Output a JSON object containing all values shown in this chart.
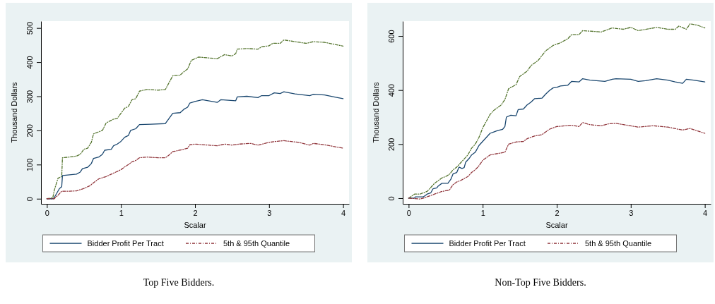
{
  "chart_data": [
    {
      "type": "line",
      "title": "Top Five Bidders.",
      "xlabel": "Scalar",
      "ylabel": "Thousand Dollars",
      "xlim": [
        -0.08,
        4.08
      ],
      "ylim": [
        -15,
        520
      ],
      "xticks": [
        0,
        1,
        2,
        3,
        4
      ],
      "yticks": [
        0,
        100,
        200,
        300,
        400,
        500
      ],
      "legend": "bottom",
      "series": [
        {
          "name": "Bidder Profit Per Tract",
          "color": "#1a476f",
          "line_style": "solid",
          "x": [
            0,
            0.09,
            0.13,
            0.17,
            0.2,
            0.21,
            0.4,
            0.45,
            0.48,
            0.55,
            0.6,
            0.63,
            0.7,
            0.75,
            0.78,
            0.87,
            0.9,
            0.95,
            1.0,
            1.05,
            1.1,
            1.13,
            1.2,
            1.25,
            1.4,
            1.6,
            1.65,
            1.7,
            1.8,
            1.85,
            1.9,
            1.93,
            2.0,
            2.1,
            2.3,
            2.35,
            2.55,
            2.57,
            2.7,
            2.85,
            2.9,
            3.0,
            3.07,
            3.15,
            3.2,
            3.35,
            3.55,
            3.6,
            3.75,
            3.9,
            4.0
          ],
          "values": [
            0,
            0,
            15,
            30,
            35,
            68,
            72,
            78,
            88,
            92,
            103,
            118,
            122,
            130,
            142,
            145,
            155,
            160,
            168,
            180,
            185,
            200,
            205,
            217,
            218,
            220,
            235,
            250,
            252,
            262,
            268,
            280,
            285,
            290,
            282,
            290,
            287,
            298,
            300,
            296,
            302,
            302,
            310,
            308,
            313,
            307,
            302,
            306,
            304,
            297,
            293
          ]
        },
        {
          "name": "5th & 95th Quantile",
          "color": "#90353b",
          "line_style": "dashed",
          "x": [
            0,
            0.1,
            0.12,
            0.15,
            0.2,
            0.3,
            0.4,
            0.5,
            0.58,
            0.65,
            0.7,
            0.8,
            0.85,
            0.9,
            1.0,
            1.05,
            1.1,
            1.15,
            1.2,
            1.25,
            1.35,
            1.5,
            1.6,
            1.65,
            1.7,
            1.75,
            1.85,
            1.9,
            1.93,
            2.0,
            2.3,
            2.4,
            2.5,
            2.6,
            2.75,
            2.85,
            3.0,
            3.1,
            3.2,
            3.4,
            3.55,
            3.6,
            3.75,
            4.0
          ],
          "values": [
            0,
            0,
            5,
            10,
            22,
            22,
            23,
            30,
            38,
            50,
            58,
            65,
            70,
            75,
            85,
            93,
            100,
            108,
            112,
            120,
            122,
            120,
            120,
            128,
            138,
            140,
            145,
            148,
            158,
            160,
            155,
            160,
            157,
            160,
            162,
            157,
            165,
            168,
            170,
            165,
            157,
            162,
            158,
            148
          ]
        },
        {
          "color": "#55752f",
          "line_style": "dashed",
          "x": [
            0,
            0.08,
            0.1,
            0.15,
            0.2,
            0.21,
            0.3,
            0.4,
            0.45,
            0.5,
            0.55,
            0.6,
            0.63,
            0.75,
            0.8,
            0.9,
            0.95,
            1.0,
            1.05,
            1.1,
            1.15,
            1.2,
            1.25,
            1.35,
            1.5,
            1.6,
            1.65,
            1.7,
            1.8,
            1.85,
            1.9,
            1.95,
            2.05,
            2.3,
            2.4,
            2.5,
            2.55,
            2.57,
            2.7,
            2.85,
            2.9,
            3.0,
            3.05,
            3.15,
            3.2,
            3.35,
            3.5,
            3.6,
            3.75,
            4.0
          ],
          "values": [
            0,
            3,
            25,
            60,
            65,
            120,
            122,
            125,
            130,
            145,
            148,
            165,
            190,
            200,
            222,
            233,
            235,
            250,
            265,
            270,
            290,
            293,
            315,
            320,
            318,
            320,
            340,
            360,
            362,
            372,
            380,
            405,
            415,
            410,
            422,
            418,
            425,
            438,
            440,
            438,
            445,
            448,
            455,
            455,
            465,
            460,
            455,
            460,
            458,
            447
          ]
        }
      ]
    },
    {
      "type": "line",
      "title": "Non-Top Five Bidders.",
      "xlabel": "Scalar",
      "ylabel": "Thousand Dollars",
      "xlim": [
        -0.08,
        4.08
      ],
      "ylim": [
        -21,
        655
      ],
      "xticks": [
        0,
        1,
        2,
        3,
        4
      ],
      "yticks": [
        0,
        200,
        400,
        600
      ],
      "legend": "bottom",
      "series": [
        {
          "name": "Bidder Profit Per Tract",
          "color": "#1a476f",
          "line_style": "solid",
          "x": [
            0,
            0.08,
            0.09,
            0.2,
            0.25,
            0.3,
            0.33,
            0.38,
            0.4,
            0.45,
            0.53,
            0.57,
            0.6,
            0.65,
            0.68,
            0.72,
            0.75,
            0.77,
            0.82,
            0.85,
            0.9,
            0.95,
            1.0,
            1.05,
            1.1,
            1.15,
            1.2,
            1.27,
            1.3,
            1.32,
            1.38,
            1.45,
            1.48,
            1.55,
            1.6,
            1.65,
            1.7,
            1.8,
            1.85,
            1.9,
            1.95,
            2.0,
            2.05,
            2.15,
            2.2,
            2.3,
            2.35,
            2.45,
            2.65,
            2.75,
            2.8,
            3.0,
            3.1,
            3.2,
            3.35,
            3.5,
            3.6,
            3.7,
            3.75,
            3.85,
            4.0
          ],
          "values": [
            0,
            0,
            5,
            5,
            15,
            20,
            35,
            38,
            45,
            55,
            55,
            70,
            90,
            95,
            115,
            110,
            113,
            133,
            148,
            160,
            170,
            195,
            210,
            225,
            240,
            245,
            250,
            255,
            265,
            300,
            307,
            305,
            328,
            330,
            345,
            355,
            368,
            370,
            385,
            398,
            408,
            410,
            415,
            418,
            432,
            430,
            442,
            437,
            432,
            440,
            442,
            440,
            432,
            435,
            442,
            437,
            430,
            425,
            440,
            437,
            430
          ]
        },
        {
          "name": "5th & 95th Quantile",
          "color": "#90353b",
          "line_style": "dashed",
          "x": [
            0,
            0.15,
            0.2,
            0.3,
            0.35,
            0.4,
            0.45,
            0.55,
            0.6,
            0.65,
            0.7,
            0.8,
            0.85,
            0.9,
            0.95,
            1.0,
            1.1,
            1.2,
            1.3,
            1.35,
            1.45,
            1.55,
            1.6,
            1.7,
            1.8,
            1.9,
            2.0,
            2.2,
            2.3,
            2.35,
            2.45,
            2.6,
            2.7,
            2.8,
            2.95,
            3.1,
            3.3,
            3.5,
            3.7,
            3.8,
            4.0
          ],
          "values": [
            0,
            -3,
            0,
            10,
            15,
            20,
            25,
            30,
            50,
            60,
            65,
            80,
            95,
            105,
            120,
            140,
            160,
            165,
            170,
            200,
            208,
            210,
            220,
            230,
            235,
            255,
            265,
            270,
            265,
            280,
            272,
            268,
            275,
            277,
            270,
            263,
            268,
            263,
            252,
            258,
            240
          ]
        },
        {
          "color": "#55752f",
          "line_style": "dashed",
          "x": [
            0,
            0.08,
            0.15,
            0.25,
            0.35,
            0.4,
            0.45,
            0.5,
            0.55,
            0.6,
            0.65,
            0.75,
            0.8,
            0.85,
            0.9,
            0.95,
            1.0,
            1.05,
            1.1,
            1.15,
            1.25,
            1.3,
            1.35,
            1.45,
            1.5,
            1.6,
            1.65,
            1.75,
            1.85,
            1.95,
            2.05,
            2.15,
            2.2,
            2.3,
            2.35,
            2.6,
            2.75,
            2.9,
            3.0,
            3.1,
            3.35,
            3.5,
            3.6,
            3.65,
            3.75,
            3.8,
            3.9,
            4.0
          ],
          "values": [
            0,
            15,
            15,
            25,
            55,
            65,
            75,
            80,
            88,
            105,
            115,
            145,
            160,
            185,
            200,
            225,
            260,
            285,
            310,
            325,
            345,
            365,
            405,
            420,
            450,
            470,
            490,
            510,
            545,
            565,
            575,
            590,
            605,
            605,
            620,
            615,
            630,
            625,
            632,
            620,
            632,
            625,
            625,
            637,
            625,
            645,
            640,
            630
          ]
        }
      ]
    }
  ]
}
